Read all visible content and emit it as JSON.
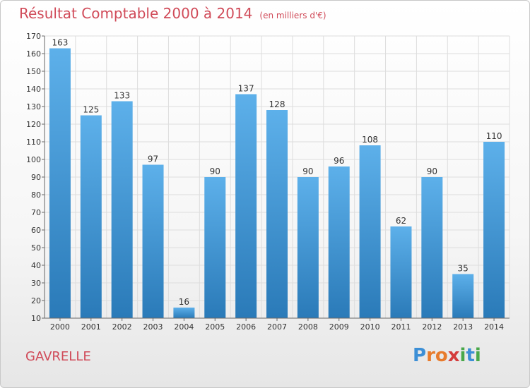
{
  "header": {
    "title": "Résultat Comptable 2000 à 2014",
    "subtitle": "(en milliers d'€)"
  },
  "footer": {
    "location": "GAVRELLE",
    "brand_letters": [
      "P",
      "r",
      "o",
      "x",
      "i",
      "t",
      "i"
    ]
  },
  "colors": {
    "title": "#d04a58",
    "bar_top": "#5db0ea",
    "bar_bottom": "#2a7ab8",
    "grid": "#dddddd",
    "brand": [
      "#3c8fd6",
      "#e87b2c",
      "#e87b2c",
      "#d43c3c",
      "#49a84a",
      "#3c8fd6",
      "#49a84a"
    ]
  },
  "chart_data": {
    "type": "bar",
    "title": "Résultat Comptable 2000 à 2014",
    "subtitle": "(en milliers d'€)",
    "xlabel": "",
    "ylabel": "",
    "categories": [
      "2000",
      "2001",
      "2002",
      "2003",
      "2004",
      "2005",
      "2006",
      "2007",
      "2008",
      "2009",
      "2010",
      "2011",
      "2012",
      "2013",
      "2014"
    ],
    "values": [
      163,
      125,
      133,
      97,
      16,
      90,
      137,
      128,
      90,
      96,
      108,
      62,
      90,
      35,
      110
    ],
    "ylim": [
      10,
      170
    ],
    "yticks": [
      10,
      20,
      30,
      40,
      50,
      60,
      70,
      80,
      90,
      100,
      110,
      120,
      130,
      140,
      150,
      160,
      170
    ],
    "grid": true,
    "legend": "none"
  }
}
